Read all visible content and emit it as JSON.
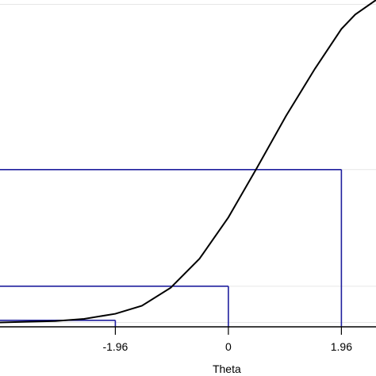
{
  "chart_data": {
    "type": "line",
    "xlabel": "Theta",
    "ylabel": "",
    "title": "",
    "xlim": [
      -3.96,
      2.56
    ],
    "ylim": [
      -0.006,
      0.445
    ],
    "x_ticks": [
      {
        "value": -1.96,
        "label": "-1.96"
      },
      {
        "value": 0,
        "label": "0"
      },
      {
        "value": 1.96,
        "label": "1.96"
      }
    ],
    "grid": true,
    "grid_y": [
      0.0,
      0.05,
      0.211,
      0.439
    ],
    "series": [
      {
        "curve": "logistic-power",
        "power": 2,
        "color": "#000000",
        "x": [
          -3.96,
          -3.5,
          -3.0,
          -2.5,
          -1.96,
          -1.5,
          -1.0,
          -0.5,
          0,
          0.5,
          1.0,
          1.5,
          1.96,
          2.2,
          2.56
        ],
        "y": [
          0.0,
          0.001,
          0.002,
          0.005,
          0.012,
          0.023,
          0.048,
          0.088,
          0.145,
          0.214,
          0.285,
          0.35,
          0.405,
          0.425,
          0.445
        ]
      }
    ],
    "reference_lines": [
      {
        "x": -1.96,
        "y": 0.003,
        "color": "#1f1f9e"
      },
      {
        "x": 0,
        "y": 0.05,
        "color": "#1f1f9e"
      },
      {
        "x": 1.96,
        "y": 0.211,
        "color": "#1f1f9e"
      }
    ],
    "colors": {
      "curve": "#000000",
      "reference": "#1f1f9e",
      "grid": "#e6e6e6",
      "axis": "#000000"
    }
  }
}
